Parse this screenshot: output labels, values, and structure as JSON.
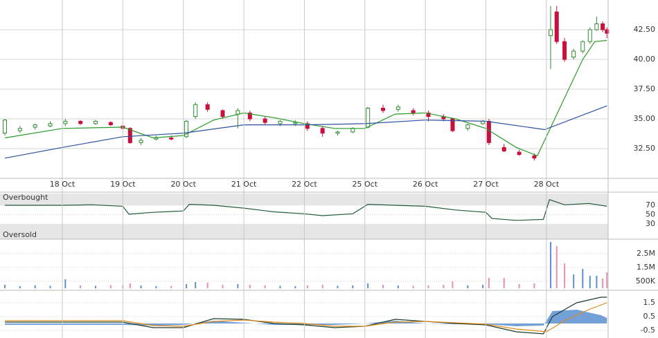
{
  "chart_data": [
    {
      "type": "candlestick",
      "x": [
        0.05,
        0.3,
        0.55,
        0.8,
        1.05,
        1.3,
        1.55,
        1.8,
        2.0,
        2.12,
        2.3,
        2.55,
        2.8,
        3.05,
        3.2,
        3.4,
        3.65,
        3.9,
        4.1,
        4.35,
        4.6,
        4.85,
        5.05,
        5.3,
        5.55,
        5.8,
        6.05,
        6.3,
        6.55,
        6.8,
        7.05,
        7.3,
        7.45,
        7.7,
        7.95,
        8.05,
        8.3,
        8.55,
        8.8,
        9.07,
        9.17,
        9.3,
        9.45,
        9.6,
        9.72,
        9.83,
        9.93,
        10.0
      ],
      "open": [
        33.8,
        34.0,
        34.3,
        34.4,
        34.6,
        34.8,
        34.6,
        34.7,
        34.4,
        34.2,
        33.0,
        33.3,
        33.4,
        33.5,
        35.2,
        36.2,
        35.7,
        35.4,
        35.5,
        35.0,
        34.6,
        34.6,
        34.6,
        34.2,
        33.8,
        33.9,
        34.3,
        35.9,
        35.8,
        35.7,
        35.5,
        35.2,
        35.0,
        34.2,
        34.6,
        34.8,
        32.6,
        32.2,
        31.9,
        42.0,
        44.0,
        41.5,
        40.2,
        40.7,
        41.5,
        42.5,
        43.0,
        42.5
      ],
      "high": [
        35.0,
        34.4,
        34.6,
        34.8,
        35.0,
        34.9,
        34.9,
        34.8,
        34.5,
        34.3,
        33.4,
        33.6,
        33.6,
        34.9,
        36.4,
        36.4,
        35.8,
        35.9,
        35.7,
        35.2,
        34.9,
        34.9,
        34.8,
        34.4,
        34.0,
        34.3,
        36.0,
        36.2,
        36.2,
        35.9,
        35.7,
        35.4,
        35.1,
        34.6,
        34.9,
        35.0,
        32.9,
        32.4,
        32.1,
        44.5,
        44.5,
        41.8,
        40.9,
        41.6,
        42.7,
        43.6,
        43.2,
        42.7
      ],
      "low": [
        33.6,
        33.8,
        34.1,
        34.3,
        34.4,
        34.5,
        34.5,
        34.4,
        34.1,
        32.9,
        32.8,
        33.2,
        33.2,
        33.4,
        35.0,
        35.6,
        35.0,
        34.2,
        34.8,
        34.5,
        34.4,
        34.4,
        34.0,
        33.5,
        33.6,
        33.8,
        34.2,
        35.5,
        35.6,
        35.3,
        34.8,
        34.8,
        33.9,
        34.0,
        34.5,
        32.8,
        32.2,
        31.9,
        31.5,
        39.2,
        41.3,
        39.8,
        40.0,
        40.5,
        41.3,
        42.4,
        42.3,
        41.8
      ],
      "close": [
        34.9,
        34.2,
        34.5,
        34.6,
        34.8,
        34.6,
        34.8,
        34.5,
        34.2,
        33.0,
        33.2,
        33.4,
        33.3,
        34.8,
        36.2,
        35.8,
        35.2,
        35.7,
        35.0,
        34.7,
        34.8,
        34.7,
        34.2,
        33.8,
        33.9,
        34.2,
        35.9,
        35.7,
        36.0,
        35.5,
        35.2,
        35.0,
        34.0,
        34.5,
        34.8,
        33.0,
        32.3,
        32.0,
        31.7,
        42.5,
        41.5,
        40.0,
        40.7,
        41.5,
        42.5,
        43.0,
        42.5,
        42.2
      ],
      "up_color": "#2e8b2e",
      "down_color": "#c8103c",
      "series": [
        {
          "color": "#2a9a2a",
          "x": [
            0.05,
            1,
            2,
            2.5,
            3,
            3.5,
            4,
            4.5,
            5,
            5.5,
            6,
            6.5,
            7,
            7.5,
            8,
            8.5,
            8.85,
            9.6,
            9.8,
            10
          ],
          "values": [
            33.4,
            34.2,
            34.3,
            33.4,
            33.6,
            34.9,
            35.5,
            35.1,
            34.6,
            34.2,
            34.2,
            35.4,
            35.5,
            35.0,
            34.2,
            32.6,
            31.9,
            40.0,
            41.5,
            41.6
          ]
        },
        {
          "color": "#2c4fa0",
          "x": [
            0.05,
            1,
            2,
            3,
            4,
            5,
            6,
            7,
            8,
            8.97,
            10
          ],
          "values": [
            31.7,
            32.6,
            33.5,
            33.8,
            34.5,
            34.5,
            34.6,
            34.9,
            34.8,
            34.1,
            36.1
          ]
        }
      ],
      "xlim": [
        -0.03,
        10.02
      ],
      "xticks": [
        {
          "value": 1,
          "label": "18 Oct"
        },
        {
          "value": 2,
          "label": "19 Oct"
        },
        {
          "value": 3,
          "label": "20 Oct"
        },
        {
          "value": 4,
          "label": "21 Oct"
        },
        {
          "value": 5,
          "label": "22 Oct"
        },
        {
          "value": 6,
          "label": "25 Oct"
        },
        {
          "value": 7,
          "label": "26 Oct"
        },
        {
          "value": 8,
          "label": "27 Oct"
        },
        {
          "value": 9,
          "label": "28 Oct"
        }
      ],
      "ylim": [
        30,
        45
      ],
      "yticks": [
        {
          "value": 32.5,
          "label": "32.50"
        },
        {
          "value": 35,
          "label": "35.00"
        },
        {
          "value": 37.5,
          "label": "37.50"
        },
        {
          "value": 40,
          "label": "40.00"
        },
        {
          "value": 42.5,
          "label": "42.50"
        }
      ],
      "grid": true
    },
    {
      "type": "line",
      "bands": [
        {
          "label": "Overbought",
          "from": 70,
          "to": 95
        },
        {
          "label": "Oversold",
          "from": -2,
          "to": 30
        }
      ],
      "series": [
        {
          "color": "#1f5a3a",
          "x": [
            0.05,
            1,
            1.5,
            2,
            2.1,
            2.5,
            3,
            3.1,
            3.5,
            4,
            4.5,
            5,
            5.3,
            5.8,
            6.05,
            6.5,
            7,
            7.5,
            8,
            8.1,
            8.5,
            8.95,
            9.05,
            9.3,
            9.7,
            10
          ],
          "values": [
            70,
            70,
            71,
            68,
            51,
            55,
            58,
            72,
            70,
            64,
            56,
            52,
            48,
            52,
            72,
            70,
            68,
            60,
            55,
            42,
            38,
            40,
            82,
            71,
            74,
            68
          ]
        }
      ],
      "xlim": [
        -0.03,
        10.02
      ],
      "ylim": [
        -2,
        95
      ],
      "yticks": [
        30,
        50,
        70
      ]
    },
    {
      "type": "bar",
      "x": [
        0.05,
        0.3,
        0.55,
        0.8,
        1.05,
        1.3,
        1.55,
        1.8,
        2.0,
        2.12,
        2.3,
        2.55,
        2.8,
        3.05,
        3.2,
        3.4,
        3.65,
        3.9,
        4.1,
        4.35,
        4.6,
        4.85,
        5.05,
        5.3,
        5.55,
        5.8,
        6.05,
        6.3,
        6.55,
        6.8,
        7.05,
        7.3,
        7.45,
        7.7,
        7.95,
        8.05,
        8.3,
        8.55,
        8.8,
        9.07,
        9.17,
        9.3,
        9.45,
        9.6,
        9.72,
        9.83,
        9.93,
        10.0
      ],
      "values": [
        250000,
        150000,
        200000,
        180000,
        650000,
        200000,
        180000,
        220000,
        200000,
        350000,
        200000,
        150000,
        180000,
        300000,
        450000,
        400000,
        250000,
        300000,
        250000,
        200000,
        180000,
        150000,
        200000,
        250000,
        180000,
        200000,
        350000,
        250000,
        200000,
        180000,
        200000,
        250000,
        500000,
        200000,
        250000,
        750000,
        750000,
        300000,
        350000,
        3350000,
        3050000,
        1800000,
        1000000,
        1400000,
        900000,
        900000,
        700000,
        1150000
      ],
      "up_color": "#5b8fd0",
      "down_color": "#e890a8",
      "xlim": [
        -0.03,
        10.02
      ],
      "ylim": [
        -150000,
        3450000
      ],
      "yticks": [
        {
          "value": 500000,
          "label": "500K"
        },
        {
          "value": 1500000,
          "label": "1.5M"
        },
        {
          "value": 2500000,
          "label": "2.5M"
        }
      ]
    },
    {
      "type": "line",
      "series": [
        {
          "color": "#5b8fd0",
          "style": "area",
          "x": [
            0.05,
            2,
            2.5,
            3,
            3.5,
            4,
            4.5,
            5,
            5.5,
            6,
            6.5,
            7,
            7.5,
            8,
            8.5,
            8.95,
            9.1,
            9.5,
            9.9,
            10
          ],
          "values": [
            -0.1,
            -0.1,
            -0.15,
            -0.1,
            0.2,
            0.05,
            -0.1,
            -0.1,
            -0.1,
            0,
            0.2,
            0,
            -0.05,
            -0.05,
            -0.2,
            -0.15,
            0.9,
            1.0,
            0.6,
            0.4
          ]
        },
        {
          "color": "#1a3a2a",
          "x": [
            0.05,
            2,
            2.5,
            3,
            3.5,
            4,
            4.5,
            5,
            5.5,
            6,
            6.5,
            7,
            7.5,
            8,
            8.5,
            8.95,
            9.1,
            9.5,
            9.9,
            10
          ],
          "values": [
            0.1,
            0.1,
            -0.3,
            -0.3,
            0.35,
            0.3,
            0,
            -0.1,
            -0.3,
            -0.2,
            0.3,
            0.15,
            0,
            -0.1,
            -0.6,
            -0.75,
            0.5,
            1.5,
            1.9,
            1.9
          ]
        },
        {
          "color": "#e08a1a",
          "x": [
            0.05,
            2,
            2.5,
            3,
            3.5,
            4,
            4.5,
            5,
            5.5,
            6,
            6.5,
            7,
            7.5,
            8,
            8.5,
            9,
            9.3,
            9.7,
            10
          ],
          "values": [
            0.2,
            0.2,
            -0.15,
            -0.2,
            0.15,
            0.25,
            0.1,
            0,
            -0.2,
            -0.2,
            0.1,
            0.15,
            0.05,
            -0.05,
            -0.4,
            -0.6,
            0.2,
            1.0,
            1.5
          ]
        }
      ],
      "xlim": [
        -0.03,
        10.02
      ],
      "ylim": [
        -1.05,
        2.4
      ],
      "yticks": [
        -0.5,
        0.5,
        1.5
      ]
    }
  ]
}
